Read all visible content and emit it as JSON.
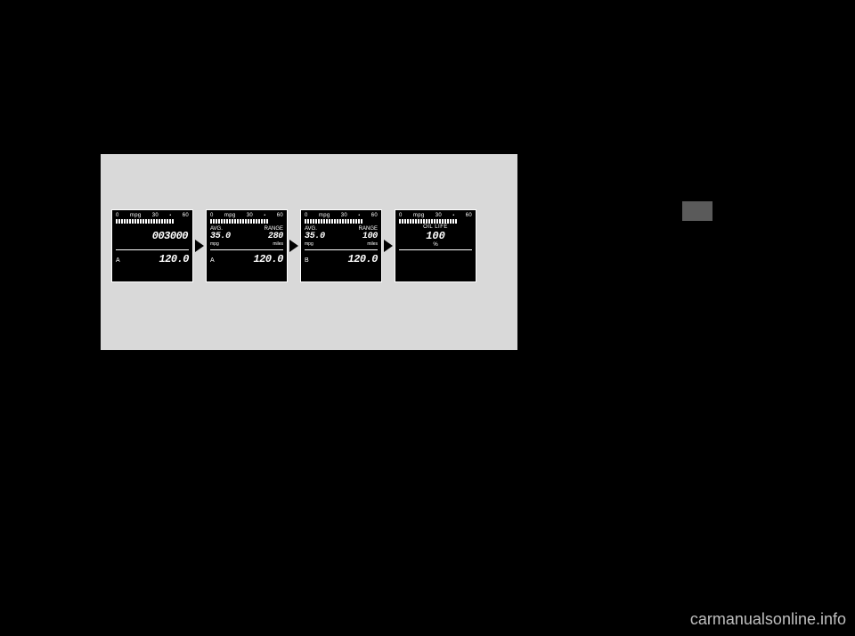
{
  "scale": {
    "t0": "0",
    "unit": "mpg",
    "t30": "30",
    "t60": "60",
    "ticks": 22
  },
  "displays": [
    {
      "type": "odo",
      "odo_value": "003000",
      "trip_label": "A",
      "trip_value": "120.0"
    },
    {
      "type": "avg_range",
      "l1": "AVG.",
      "l2": "RANGE",
      "v1": "35.0",
      "v2": "280",
      "u1": "mpg",
      "u2": "miles",
      "trip_label": "A",
      "trip_value": "120.0"
    },
    {
      "type": "avg_range",
      "l1": "AVG.",
      "l2": "RANGE",
      "v1": "35.0",
      "v2": "100",
      "u1": "mpg",
      "u2": "miles",
      "trip_label": "B",
      "trip_value": "120.0"
    },
    {
      "type": "oil",
      "label": "OIL LIFE",
      "value": "100",
      "unit": "%"
    }
  ],
  "watermark": "carmanualsonline.info"
}
